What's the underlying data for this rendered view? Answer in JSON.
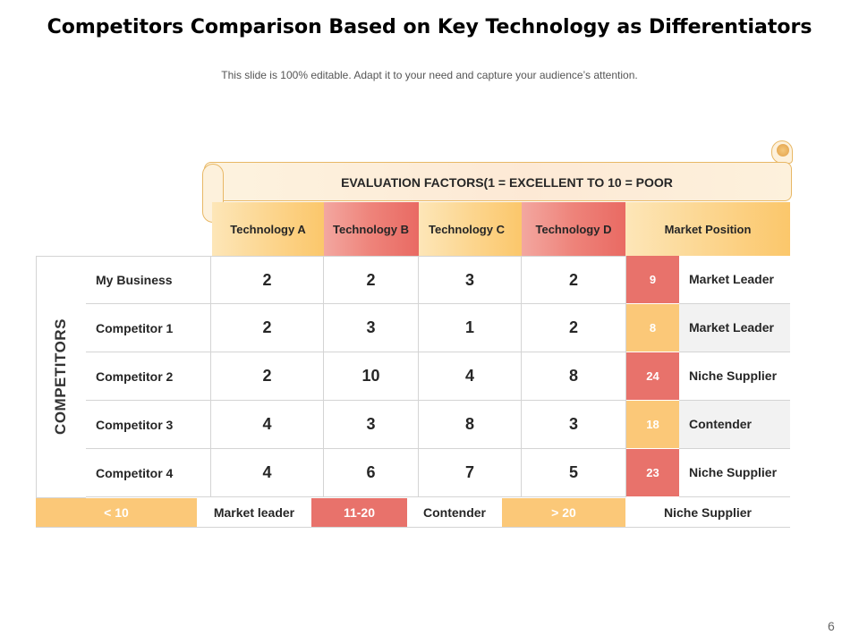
{
  "title": "Competitors Comparison Based on Key Technology as Differentiators",
  "subtitle": "This slide is 100% editable. Adapt it to your need and capture your audience’s attention.",
  "page_number": "6",
  "banner": "EVALUATION FACTORS(1 = EXCELLENT TO 10 = POOR",
  "headers": {
    "tech_a": "Technology A",
    "tech_b": "Technology B",
    "tech_c": "Technology C",
    "tech_d": "Technology D",
    "market": "Market Position"
  },
  "side_label": "COMPETITORS",
  "rows": [
    {
      "name": "My Business",
      "a": "2",
      "b": "2",
      "c": "3",
      "d": "2",
      "score": "9",
      "position": "Market Leader"
    },
    {
      "name": "Competitor 1",
      "a": "2",
      "b": "3",
      "c": "1",
      "d": "2",
      "score": "8",
      "position": "Market Leader"
    },
    {
      "name": "Competitor 2",
      "a": "2",
      "b": "10",
      "c": "4",
      "d": "8",
      "score": "24",
      "position": "Niche Supplier"
    },
    {
      "name": "Competitor 3",
      "a": "4",
      "b": "3",
      "c": "8",
      "d": "3",
      "score": "18",
      "position": "Contender"
    },
    {
      "name": "Competitor 4",
      "a": "4",
      "b": "6",
      "c": "7",
      "d": "5",
      "score": "23",
      "position": "Niche Supplier"
    }
  ],
  "legend": {
    "range1": "< 10",
    "label1": "Market leader",
    "range2": "11-20",
    "label2": "Contender",
    "range3": "> 20",
    "label3": "Niche Supplier"
  },
  "colors": {
    "orange": "#fbc878",
    "red": "#e8726b",
    "grey_row": "#f2f2f2"
  }
}
